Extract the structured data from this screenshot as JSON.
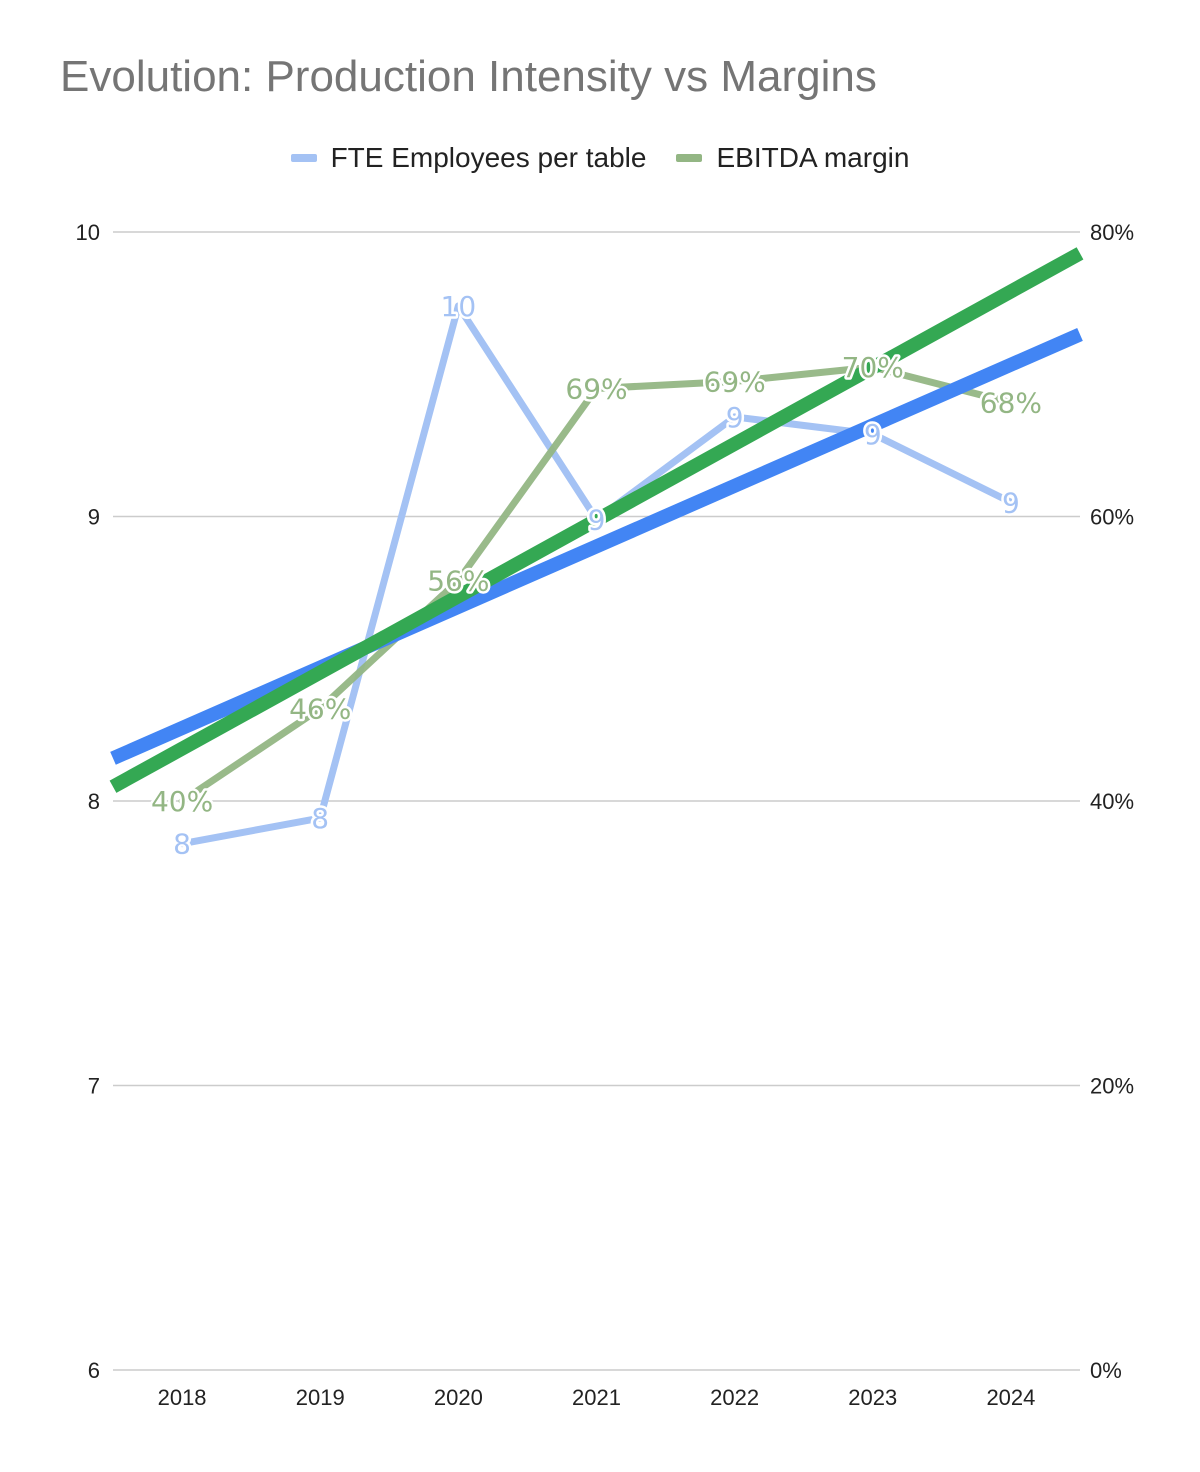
{
  "chart_data": {
    "type": "line",
    "title": "Evolution: Production Intensity vs Margins",
    "categories": [
      "2018",
      "2019",
      "2020",
      "2021",
      "2022",
      "2023",
      "2024"
    ],
    "series": [
      {
        "name": "FTE Employees per table",
        "axis": "left",
        "color": "#a4c2f4",
        "values": [
          7.85,
          7.94,
          9.74,
          8.99,
          9.35,
          9.29,
          9.05
        ],
        "labels": [
          "8",
          "8",
          "10",
          "9",
          "9",
          "9",
          "9"
        ]
      },
      {
        "name": "EBITDA margin",
        "axis": "right",
        "color": "#93b684",
        "values": [
          0.4,
          0.465,
          0.555,
          0.69,
          0.695,
          0.705,
          0.68
        ],
        "labels": [
          "40%",
          "46%",
          "56%",
          "69%",
          "69%",
          "70%",
          "68%"
        ]
      }
    ],
    "trendlines": [
      {
        "series": "FTE Employees per table",
        "color": "#4285f4",
        "axis": "left",
        "start": 8.15,
        "end": 9.64
      },
      {
        "series": "EBITDA margin",
        "color": "#34a853",
        "axis": "right",
        "start": 0.41,
        "end": 0.785
      }
    ],
    "y_left": {
      "min": 6,
      "max": 10,
      "ticks": [
        "10",
        "9",
        "8",
        "7",
        "6"
      ]
    },
    "y_right": {
      "min": 0,
      "max": 0.8,
      "ticks": [
        "80%",
        "60%",
        "40%",
        "20%",
        "0%"
      ]
    },
    "grid": true,
    "legend_position": "top-center"
  }
}
